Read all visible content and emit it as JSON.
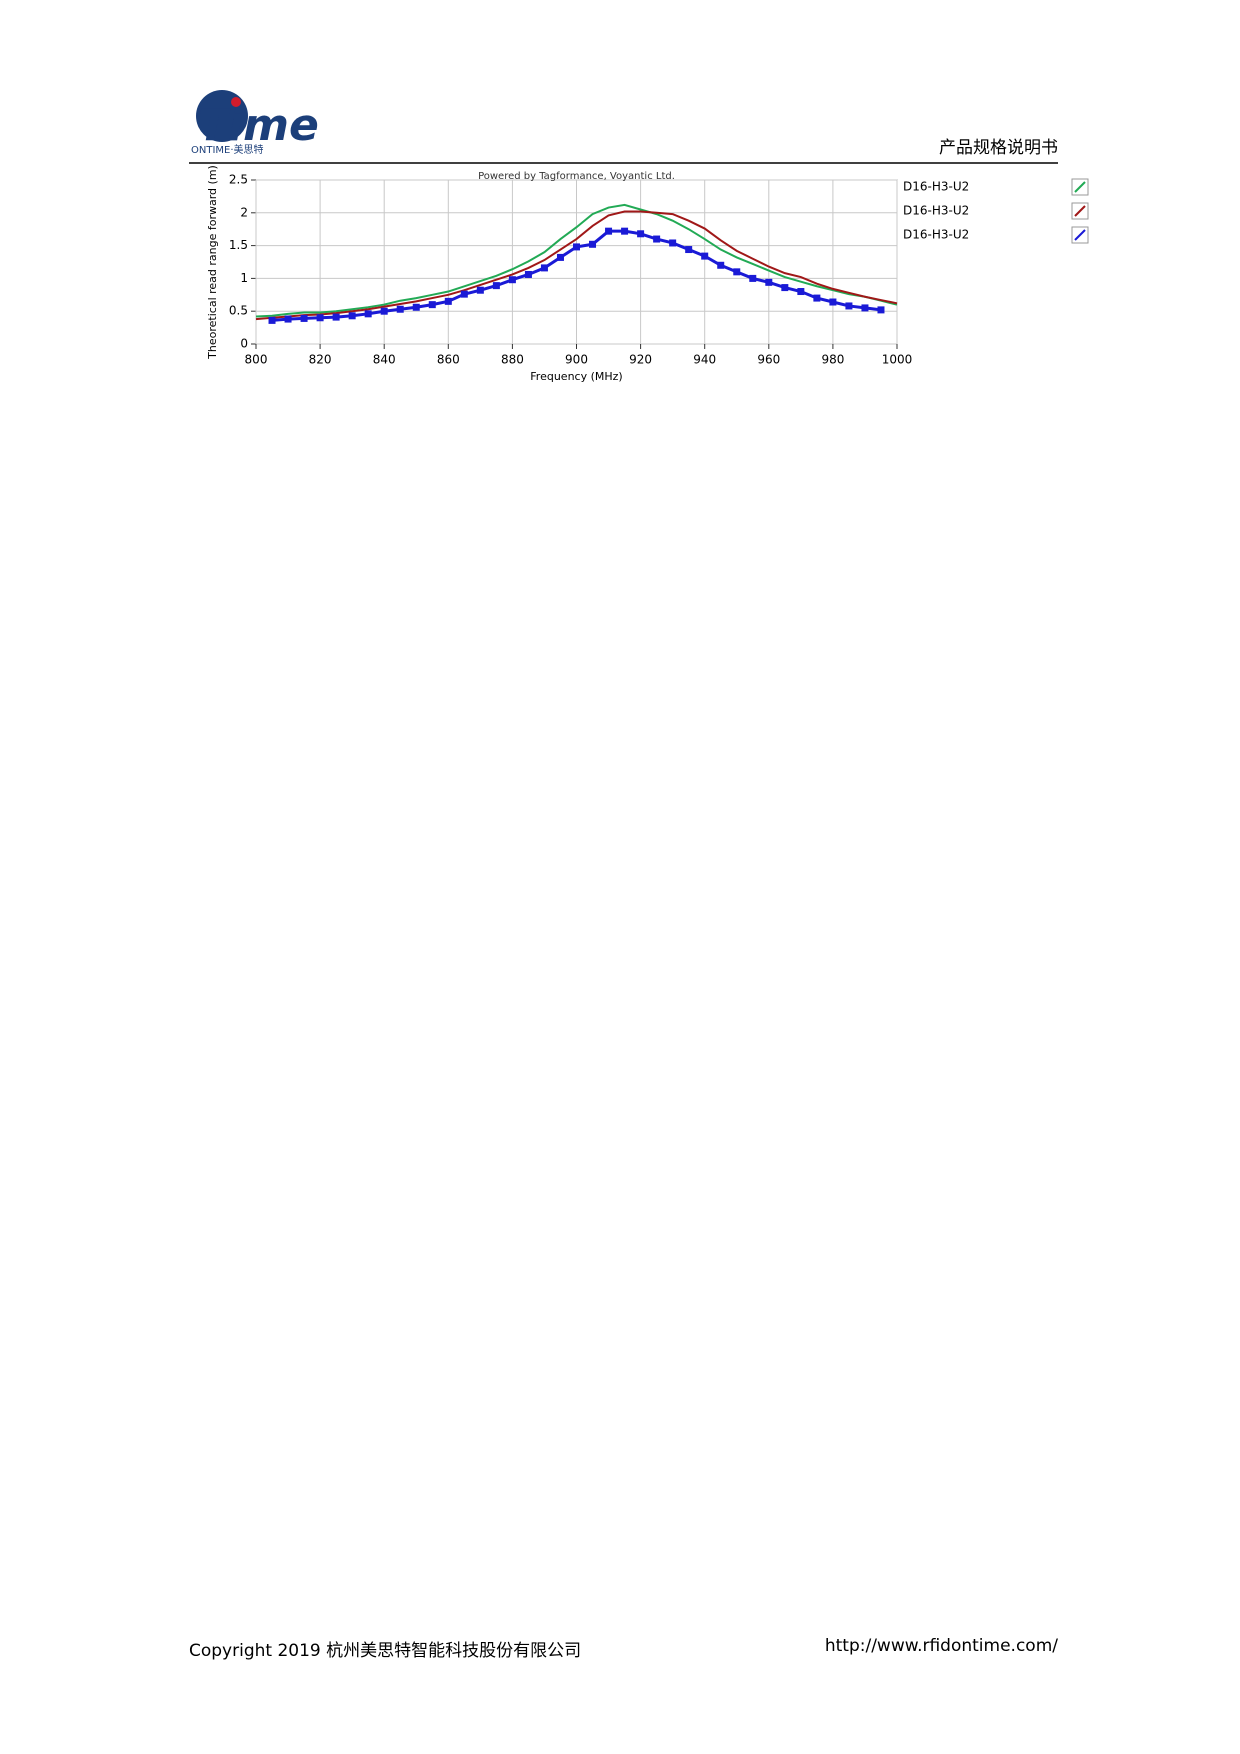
{
  "header": {
    "logo": "Time",
    "logo_subtitle": "ONTIME·美思特",
    "doc_title": "产品规格说明书"
  },
  "chart_data": {
    "type": "line",
    "annotation": "Powered by Tagformance, Voyantic Ltd.",
    "x_label": "Frequency (MHz)",
    "y_label": "Theoretical read range forward (m)",
    "x": [
      800,
      805,
      810,
      815,
      820,
      825,
      830,
      835,
      840,
      845,
      850,
      855,
      860,
      865,
      870,
      875,
      880,
      885,
      890,
      895,
      900,
      905,
      910,
      915,
      920,
      925,
      930,
      935,
      940,
      945,
      950,
      955,
      960,
      965,
      970,
      975,
      980,
      985,
      990,
      995,
      1000
    ],
    "series": [
      {
        "name": "D16-H3-U2",
        "color": "#22aa55",
        "values": [
          0.42,
          0.43,
          0.46,
          0.48,
          0.48,
          0.5,
          0.53,
          0.56,
          0.6,
          0.66,
          0.7,
          0.75,
          0.8,
          0.88,
          0.96,
          1.04,
          1.14,
          1.26,
          1.4,
          1.6,
          1.78,
          1.98,
          2.08,
          2.12,
          2.05,
          1.98,
          1.88,
          1.75,
          1.6,
          1.44,
          1.32,
          1.22,
          1.12,
          1.02,
          0.95,
          0.88,
          0.82,
          0.76,
          0.72,
          0.66,
          0.6
        ]
      },
      {
        "name": "D16-H3-U2",
        "color": "#a01818",
        "values": [
          0.38,
          0.4,
          0.42,
          0.44,
          0.45,
          0.47,
          0.5,
          0.53,
          0.57,
          0.61,
          0.65,
          0.7,
          0.75,
          0.82,
          0.9,
          0.98,
          1.06,
          1.16,
          1.28,
          1.44,
          1.6,
          1.8,
          1.96,
          2.02,
          2.02,
          2.0,
          1.98,
          1.88,
          1.76,
          1.58,
          1.42,
          1.3,
          1.18,
          1.08,
          1.02,
          0.92,
          0.84,
          0.78,
          0.72,
          0.67,
          0.62
        ]
      },
      {
        "name": "D16-H3-U2",
        "color": "#1a1ad6",
        "values": [
          null,
          0.36,
          0.38,
          0.39,
          0.4,
          0.41,
          0.43,
          0.46,
          0.5,
          0.53,
          0.56,
          0.6,
          0.65,
          0.76,
          0.82,
          0.89,
          0.98,
          1.06,
          1.16,
          1.32,
          1.48,
          1.52,
          1.72,
          1.72,
          1.68,
          1.6,
          1.54,
          1.44,
          1.34,
          1.2,
          1.1,
          1.0,
          0.94,
          0.86,
          0.8,
          0.7,
          0.64,
          0.58,
          0.55,
          0.52,
          null
        ]
      }
    ],
    "xlim": [
      800,
      1000
    ],
    "xticks": [
      800,
      820,
      840,
      860,
      880,
      900,
      920,
      940,
      960,
      980,
      1000
    ],
    "ylim": [
      0,
      2.5
    ],
    "yticks": [
      0,
      0.5,
      1,
      1.5,
      2,
      2.5
    ],
    "grid": true
  },
  "footer": {
    "copyright": "Copyright 2019  杭州美思特智能科技股份有限公司",
    "url": "http://www.rfidontime.com/"
  }
}
